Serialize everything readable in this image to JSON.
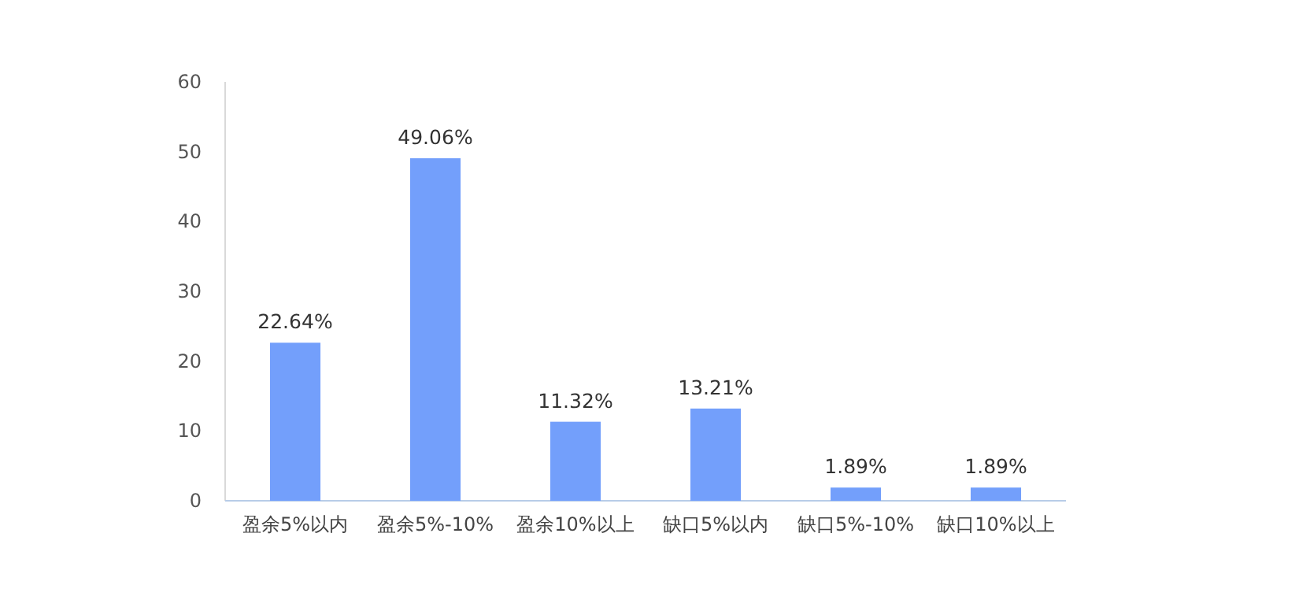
{
  "chart_data": {
    "type": "bar",
    "categories": [
      "盈余5%以内",
      "盈余5%-10%",
      "盈余10%以上",
      "缺口5%以内",
      "缺口5%-10%",
      "缺口10%以上"
    ],
    "values": [
      22.64,
      49.06,
      11.32,
      13.21,
      1.89,
      1.89
    ],
    "value_labels": [
      "22.64%",
      "49.06%",
      "11.32%",
      "13.21%",
      "1.89%",
      "1.89%"
    ],
    "color": "#739ffb",
    "ylim": [
      0,
      60
    ],
    "yticks": [
      0,
      10,
      20,
      30,
      40,
      50,
      60
    ],
    "grid": false
  }
}
